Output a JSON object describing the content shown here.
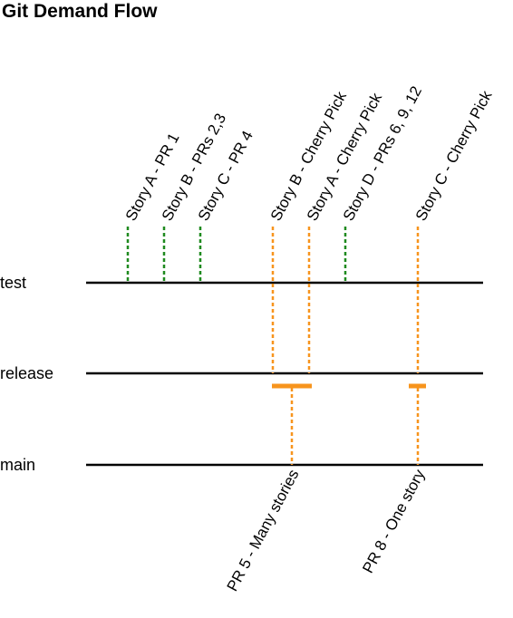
{
  "title": "Git Demand Flow",
  "colors": {
    "dev": "#1f8a1f",
    "cherry": "#f7941d",
    "line": "#000000"
  },
  "branches": [
    "test",
    "release",
    "main"
  ],
  "commits": [
    {
      "label": "Story A - PR 1",
      "kind": "dev"
    },
    {
      "label": "Story B - PRs 2,3",
      "kind": "dev"
    },
    {
      "label": "Story C - PR 4",
      "kind": "dev"
    },
    {
      "label": "Story B - Cherry Pick",
      "kind": "cherry"
    },
    {
      "label": "Story A - Cherry Pick",
      "kind": "cherry"
    },
    {
      "label": "Story D - PRs 6, 9, 12",
      "kind": "dev"
    },
    {
      "label": "Story C - Cherry Pick",
      "kind": "cherry"
    }
  ],
  "merges": [
    {
      "label": "PR 5 - Many stories"
    },
    {
      "label": "PR 8 - One story"
    }
  ]
}
